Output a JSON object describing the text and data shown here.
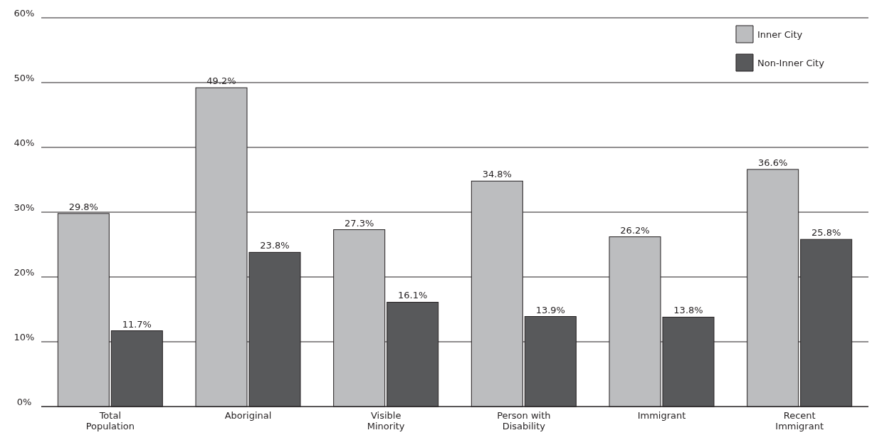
{
  "chart_data": {
    "type": "bar",
    "categories": [
      "Total Population",
      "Aboriginal",
      "Visible Minority",
      "Person with Disability",
      "Immigrant",
      "Recent Immigrant"
    ],
    "series": [
      {
        "name": "Inner City",
        "color": "#bcbdbf",
        "values": [
          29.8,
          49.2,
          27.3,
          34.8,
          26.2,
          36.6
        ],
        "value_labels": [
          "29.8%",
          "49.2%",
          "27.3%",
          "34.8%",
          "26.2%",
          "36.6%"
        ]
      },
      {
        "name": "Non-Inner City",
        "color": "#58595b",
        "values": [
          11.7,
          23.8,
          16.1,
          13.9,
          13.8,
          25.8
        ],
        "value_labels": [
          "11.7%",
          "23.8%",
          "16.1%",
          "13.9%",
          "13.8%",
          "25.8%"
        ]
      }
    ],
    "ylim": [
      0,
      60
    ],
    "yticks": [
      {
        "value": 0,
        "label": "0%"
      },
      {
        "value": 10,
        "label": "10%"
      },
      {
        "value": 20,
        "label": "20%"
      },
      {
        "value": 30,
        "label": "30%"
      },
      {
        "value": 40,
        "label": "40%"
      },
      {
        "value": 50,
        "label": "50%"
      },
      {
        "value": 60,
        "label": "60%"
      }
    ],
    "grid": "y",
    "legend": "top right"
  }
}
